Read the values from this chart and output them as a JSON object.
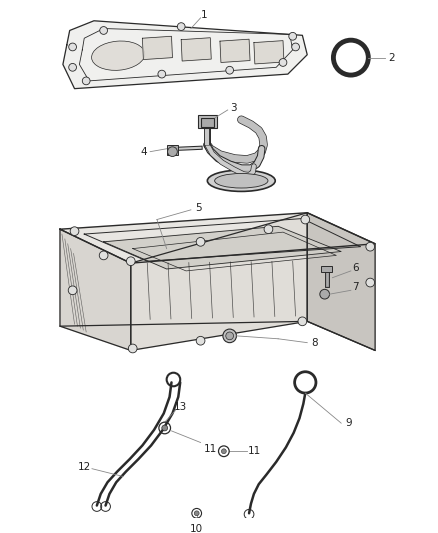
{
  "background_color": "#ffffff",
  "fig_width": 4.38,
  "fig_height": 5.33,
  "dpi": 100,
  "lc": "#2a2a2a",
  "cl": "#888888",
  "lfc": "#222222",
  "fs": 7.5
}
